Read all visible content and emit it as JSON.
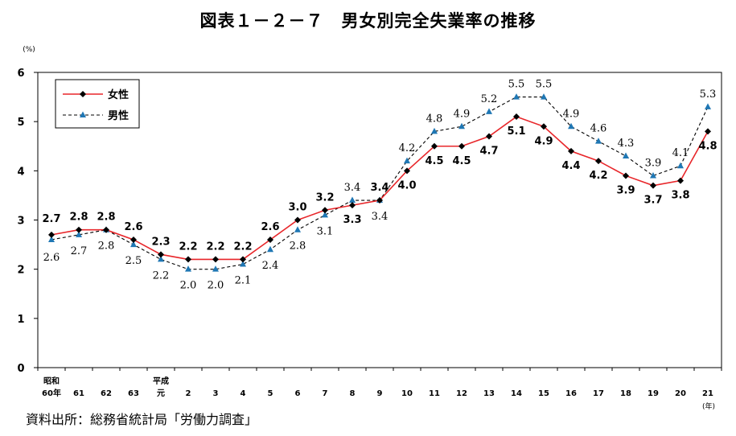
{
  "chart_data": {
    "type": "line",
    "title": "図表１－２－７　男女別完全失業率の推移",
    "y_unit": "(%)",
    "x_unit": "(年)",
    "ylim": [
      0,
      6
    ],
    "yticks": [
      "0",
      "1",
      "2",
      "3",
      "4",
      "5",
      "6"
    ],
    "categories": [
      "昭和\n60年",
      "61",
      "62",
      "63",
      "平成\n元",
      "2",
      "3",
      "4",
      "5",
      "6",
      "7",
      "8",
      "9",
      "10",
      "11",
      "12",
      "13",
      "14",
      "15",
      "16",
      "17",
      "18",
      "19",
      "20",
      "21"
    ],
    "series": [
      {
        "name": "女性",
        "color": "#e8262a",
        "marker": "diamond",
        "values": [
          2.7,
          2.8,
          2.8,
          2.6,
          2.3,
          2.2,
          2.2,
          2.2,
          2.6,
          3.0,
          3.2,
          3.3,
          3.4,
          4.0,
          4.5,
          4.5,
          4.7,
          5.1,
          4.9,
          4.4,
          4.2,
          3.9,
          3.7,
          3.8,
          4.8
        ],
        "labels": [
          "2.7",
          "2.8",
          "2.8",
          "2.6",
          "2.3",
          "2.2",
          "2.2",
          "2.2",
          "2.6",
          "3.0",
          "3.2",
          "3.3",
          "3.4",
          "4.0",
          "4.5",
          "4.5",
          "4.7",
          "5.1",
          "4.9",
          "4.4",
          "4.2",
          "3.9",
          "3.7",
          "3.8",
          "4.8"
        ]
      },
      {
        "name": "男性",
        "color": "#1f77b4",
        "marker": "triangle",
        "dashed": true,
        "values": [
          2.6,
          2.7,
          2.8,
          2.5,
          2.2,
          2.0,
          2.0,
          2.1,
          2.4,
          2.8,
          3.1,
          3.4,
          3.4,
          4.2,
          4.8,
          4.9,
          5.2,
          5.5,
          5.5,
          4.9,
          4.6,
          4.3,
          3.9,
          4.1,
          5.3
        ],
        "labels": [
          "2.6",
          "2.7",
          "2.8",
          "2.5",
          "2.2",
          "2.0",
          "2.0",
          "2.1",
          "2.4",
          "2.8",
          "3.1",
          "3.4",
          "3.4",
          "4.2",
          "4.8",
          "4.9",
          "5.2",
          "5.5",
          "5.5",
          "4.9",
          "4.6",
          "4.3",
          "3.9",
          "4.1",
          "5.3"
        ]
      }
    ],
    "legend": "top-left",
    "grid": false
  },
  "source": "資料出所：総務省統計局「労働力調査」"
}
